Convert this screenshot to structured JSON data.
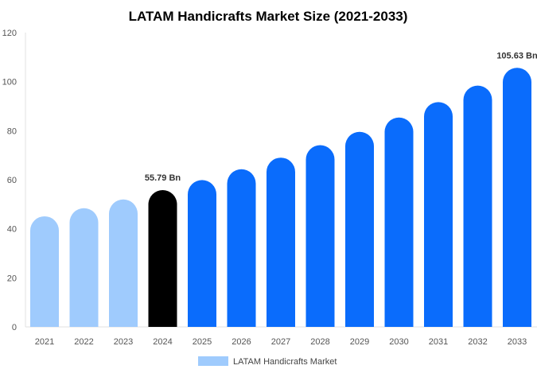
{
  "chart_data": {
    "type": "bar",
    "title": "LATAM Handicrafts Market Size (2021-2033)",
    "xlabel": "",
    "ylabel": "",
    "ylim": [
      0,
      120
    ],
    "yticks": [
      0,
      20,
      40,
      60,
      80,
      100,
      120
    ],
    "grid": false,
    "legend_position": "bottom",
    "categories": [
      "2021",
      "2022",
      "2023",
      "2024",
      "2025",
      "2026",
      "2027",
      "2028",
      "2029",
      "2030",
      "2031",
      "2032",
      "2033"
    ],
    "series": [
      {
        "name": "LATAM Handicrafts Market",
        "values": [
          45.1,
          48.4,
          51.97,
          55.79,
          59.89,
          64.29,
          69.02,
          74.09,
          79.54,
          85.38,
          91.66,
          98.4,
          105.63
        ]
      }
    ],
    "bar_colors": [
      "#9fcbfd",
      "#9fcbfd",
      "#9fcbfd",
      "#000000",
      "#0a6cfc",
      "#0a6cfc",
      "#0a6cfc",
      "#0a6cfc",
      "#0a6cfc",
      "#0a6cfc",
      "#0a6cfc",
      "#0a6cfc",
      "#0a6cfc"
    ],
    "legend_color": "#9fcbfd",
    "data_labels": [
      {
        "category": "2024",
        "text": "55.79 Bn"
      },
      {
        "category": "2033",
        "text": "105.63 Bn"
      }
    ]
  }
}
